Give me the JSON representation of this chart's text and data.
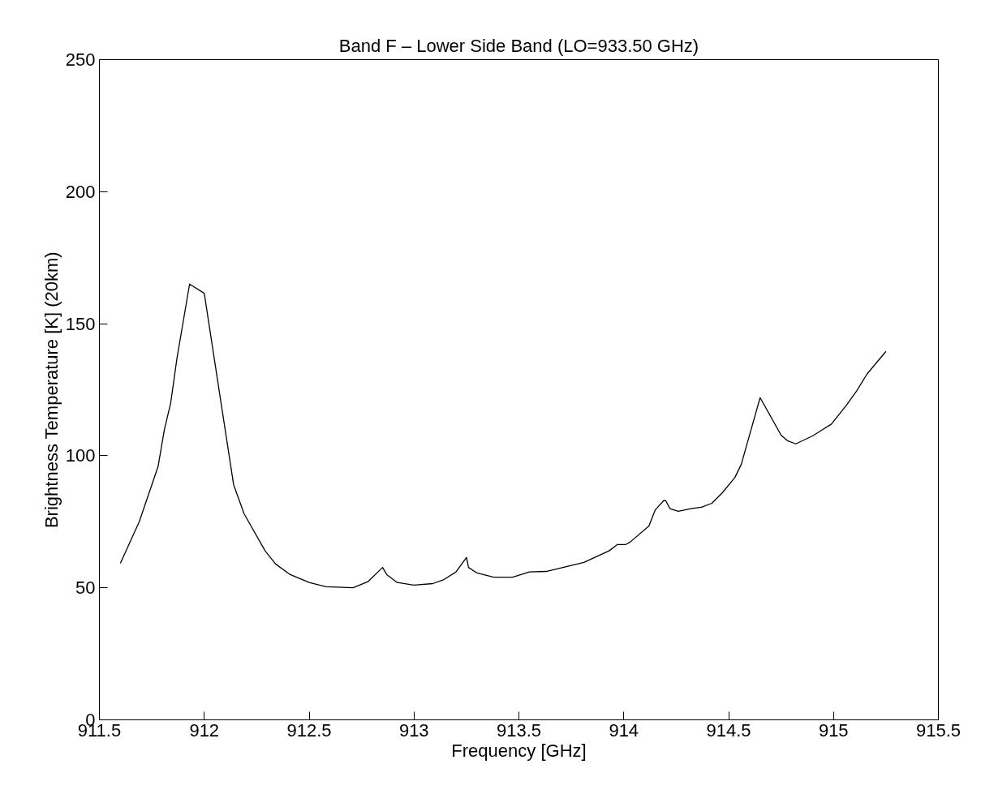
{
  "chart_data": {
    "type": "line",
    "title": "Band F – Lower Side Band (LO=933.50 GHz)",
    "xlabel": "Frequency [GHz]",
    "ylabel": "Brightness Temperature [K] (20km)",
    "xlim": [
      911.5,
      915.5
    ],
    "xticks": [
      911.5,
      912,
      912.5,
      913,
      913.5,
      914,
      914.5,
      915,
      915.5
    ],
    "ylim": [
      0,
      250
    ],
    "yticks": [
      0,
      50,
      100,
      150,
      200,
      250
    ],
    "grid": false,
    "marker": "none",
    "line_style": "solid",
    "series": [
      {
        "color": "#000000",
        "x": [
          911.6,
          911.69,
          911.78,
          911.81,
          911.84,
          911.87,
          911.93,
          912.0,
          912.08,
          912.14,
          912.19,
          912.29,
          912.34,
          912.41,
          912.5,
          912.58,
          912.71,
          912.78,
          912.85,
          912.87,
          912.92,
          913.0,
          913.09,
          913.14,
          913.2,
          913.25,
          913.26,
          913.3,
          913.38,
          913.47,
          913.55,
          913.63,
          913.81,
          913.93,
          913.97,
          914.01,
          914.03,
          914.12,
          914.15,
          914.19,
          914.2,
          914.22,
          914.26,
          914.32,
          914.37,
          914.42,
          914.47,
          914.53,
          914.56,
          914.65,
          914.75,
          914.78,
          914.82,
          914.9,
          914.99,
          915.06,
          915.11,
          915.16,
          915.25
        ],
        "values": [
          59.3,
          75,
          96,
          110,
          120,
          137,
          165,
          161.5,
          120,
          89,
          78,
          64,
          59,
          55,
          52,
          50.4,
          50,
          52.3,
          57.7,
          55,
          52,
          51,
          51.6,
          53,
          56,
          61.5,
          57.7,
          55.6,
          54,
          54,
          56,
          56.2,
          59.6,
          64,
          66.4,
          66.4,
          67.3,
          73.4,
          79.5,
          83,
          83,
          80,
          79,
          80,
          80.5,
          82,
          86,
          91.8,
          96.7,
          122,
          107.8,
          105.7,
          104.5,
          107.5,
          112,
          119,
          124.5,
          131,
          139.5
        ]
      }
    ]
  }
}
